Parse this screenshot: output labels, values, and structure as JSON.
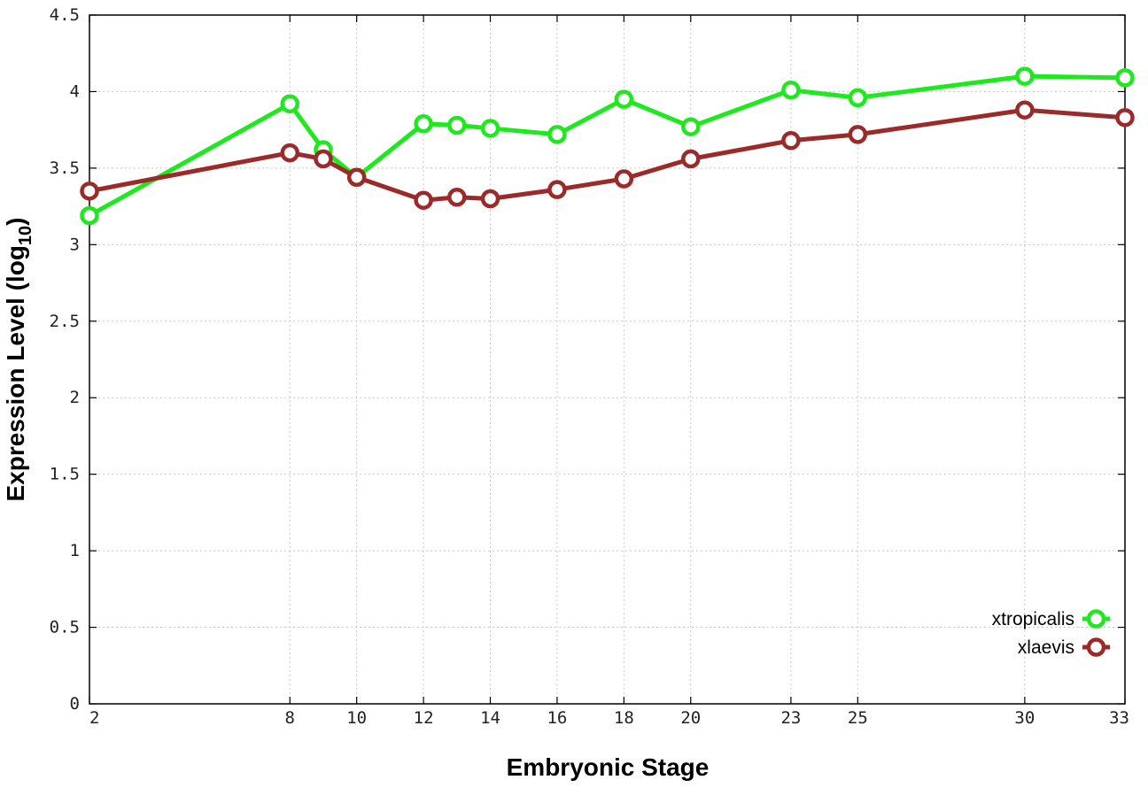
{
  "chart_data": {
    "type": "line",
    "title": "",
    "xlabel": "Embryonic Stage",
    "ylabel_main": "Expression Level (log",
    "ylabel_sub": "10",
    "ylabel_close": ")",
    "xlim": [
      2,
      33
    ],
    "ylim": [
      0,
      4.5
    ],
    "x_ticks": [
      2,
      8,
      10,
      12,
      14,
      16,
      18,
      20,
      23,
      25,
      30,
      33
    ],
    "x_tick_labels": [
      "2",
      "8",
      "10",
      "12",
      "14",
      "16",
      "18",
      "20",
      "23",
      "25",
      "30",
      "33"
    ],
    "y_ticks": [
      0,
      0.5,
      1,
      1.5,
      2,
      2.5,
      3,
      3.5,
      4,
      4.5
    ],
    "y_tick_labels": [
      "0",
      "0.5",
      "1",
      "1.5",
      "2",
      "2.5",
      "3",
      "3.5",
      "4",
      "4.5"
    ],
    "grid": true,
    "legend_position": "bottom-right",
    "x": [
      2,
      8,
      9,
      10,
      12,
      13,
      14,
      16,
      18,
      20,
      23,
      25,
      30,
      33
    ],
    "series": [
      {
        "name": "xtropicalis",
        "color": "#1ee81e",
        "values": [
          3.19,
          3.92,
          3.62,
          3.44,
          3.79,
          3.78,
          3.76,
          3.72,
          3.95,
          3.77,
          4.01,
          3.96,
          4.1,
          4.09
        ]
      },
      {
        "name": "xlaevis",
        "color": "#9b2b2b",
        "values": [
          3.35,
          3.6,
          3.56,
          3.44,
          3.29,
          3.31,
          3.3,
          3.36,
          3.43,
          3.56,
          3.68,
          3.72,
          3.88,
          3.83
        ]
      }
    ]
  }
}
